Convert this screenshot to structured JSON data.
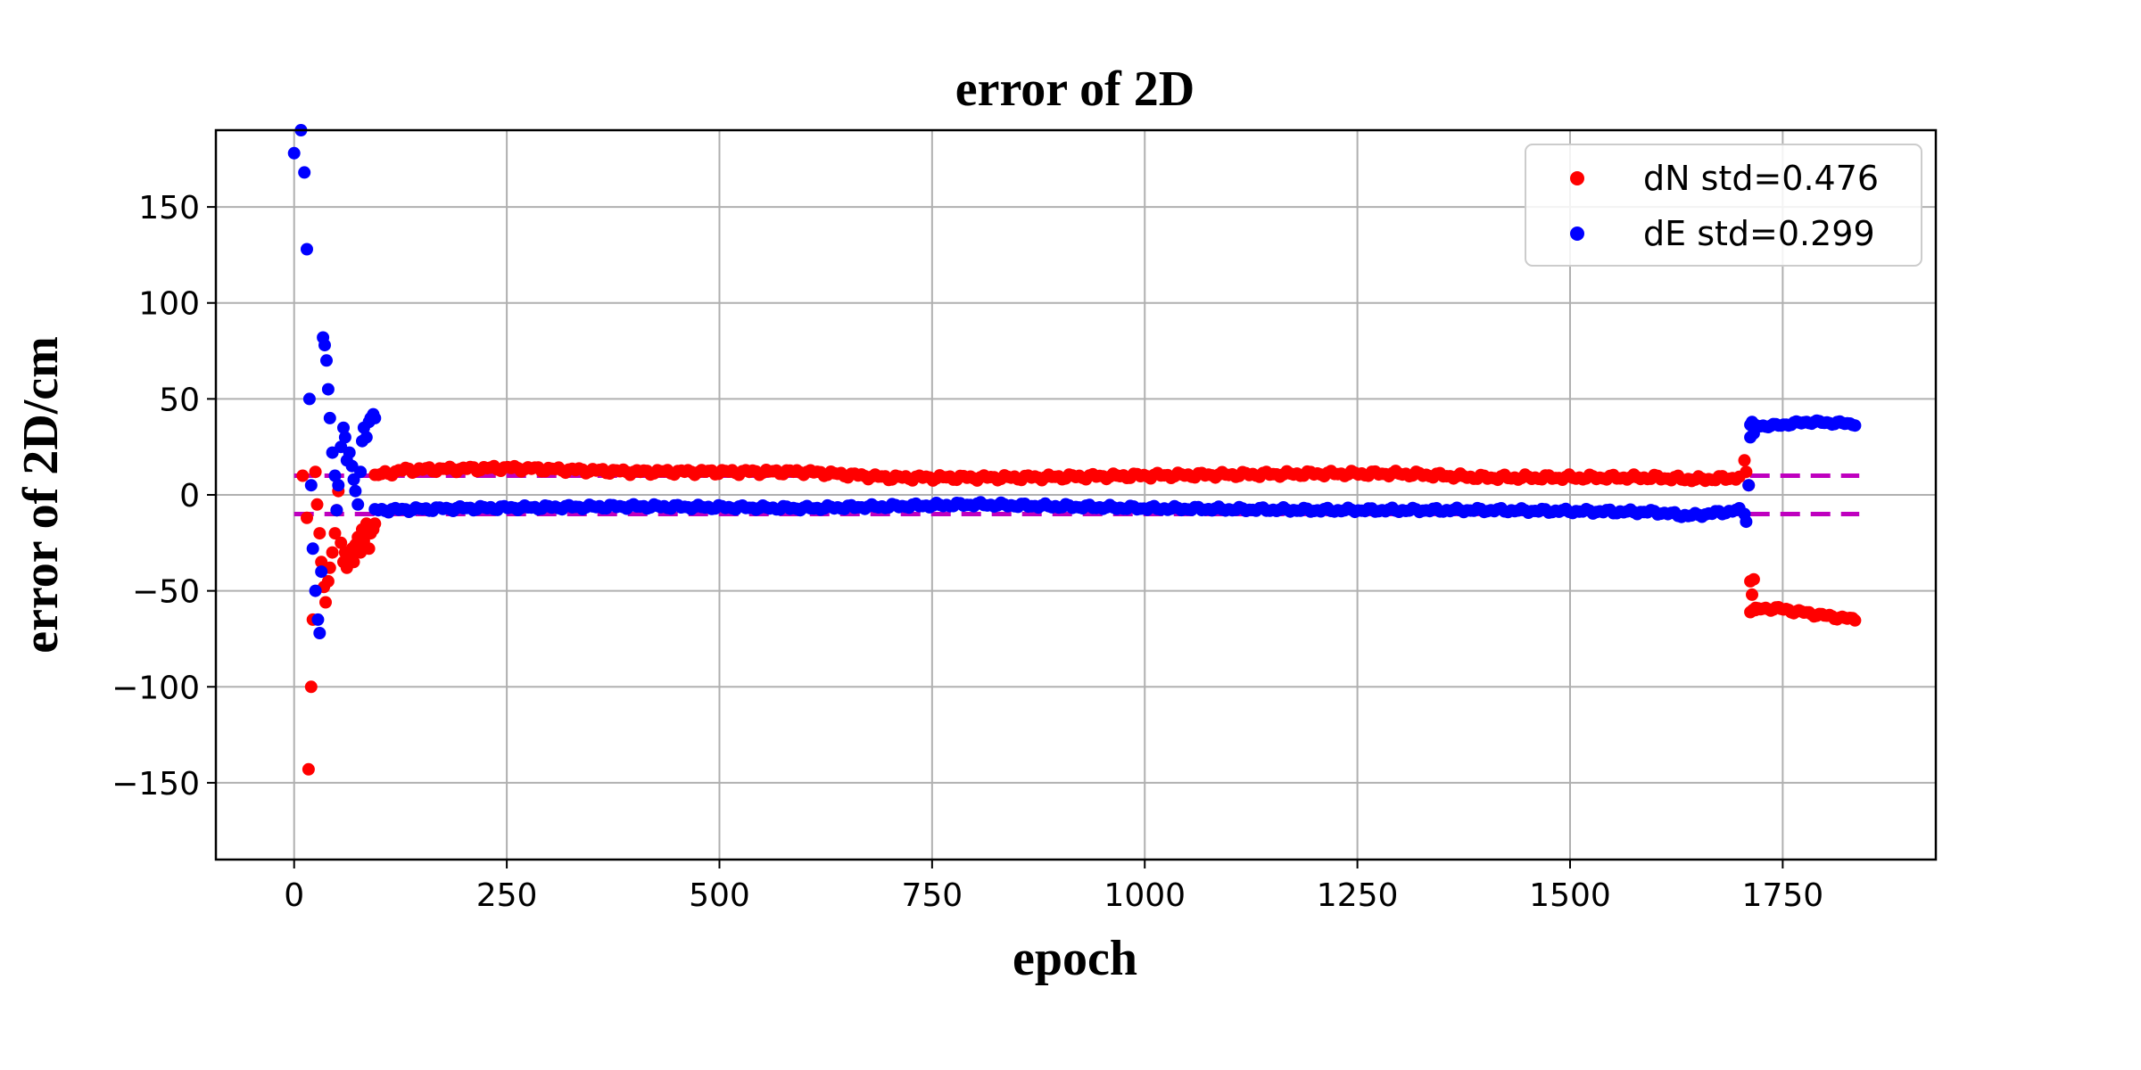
{
  "chart_data": {
    "type": "scatter",
    "title": "error of 2D",
    "xlabel": "epoch",
    "ylabel": "error of 2D/cm",
    "xlim": [
      -92,
      1930
    ],
    "ylim": [
      -190,
      190
    ],
    "x_ticks": [
      0,
      250,
      500,
      750,
      1000,
      1250,
      1500,
      1750
    ],
    "y_ticks": [
      150,
      100,
      50,
      0,
      -50,
      -100,
      -150
    ],
    "y_tick_labels": [
      "150",
      "100",
      "50",
      "0",
      "−50",
      "−100",
      "−150"
    ],
    "grid": true,
    "legend_position": "top-right",
    "colors": {
      "dN": "#ff0000",
      "dE": "#0000ff",
      "threshold": "#bf00bf"
    },
    "series": [
      {
        "name": "dN std=0.476",
        "color": "#ff0000",
        "segments": [
          {
            "x": [
              10,
              15,
              17,
              20,
              22,
              25,
              27,
              30,
              32,
              35,
              37,
              40,
              42,
              45,
              48,
              50,
              52,
              55,
              58,
              60,
              62,
              65,
              68,
              70,
              72,
              75,
              78,
              80,
              82,
              85,
              88,
              90,
              93,
              95
            ],
            "y": [
              10,
              -12,
              -143,
              -100,
              -65,
              12,
              -5,
              -20,
              -35,
              -48,
              -56,
              -45,
              -38,
              -30,
              -20,
              -8,
              2,
              -25,
              -35,
              -30,
              -38,
              -32,
              -28,
              -35,
              -26,
              -22,
              -30,
              -18,
              -24,
              -15,
              -28,
              -20,
              -18,
              -15
            ]
          }
        ],
        "bands": [
          {
            "x0": 95,
            "x1": 1700,
            "step": 4,
            "points": [
              [
                95,
                10
              ],
              [
                130,
                13
              ],
              [
                250,
                14
              ],
              [
                400,
                12
              ],
              [
                600,
                12
              ],
              [
                700,
                9
              ],
              [
                850,
                9
              ],
              [
                1000,
                10
              ],
              [
                1200,
                11
              ],
              [
                1300,
                11
              ],
              [
                1400,
                9
              ],
              [
                1500,
                9
              ],
              [
                1600,
                9
              ],
              [
                1650,
                8
              ],
              [
                1700,
                9
              ]
            ],
            "jitter": 1.6
          },
          {
            "x0": 1712,
            "x1": 1835,
            "step": 3,
            "points": [
              [
                1712,
                -60
              ],
              [
                1740,
                -59
              ],
              [
                1800,
                -63
              ],
              [
                1835,
                -65
              ]
            ],
            "jitter": 1.2
          }
        ],
        "extra": {
          "x": [
            1705,
            1707,
            1710,
            1712,
            1714,
            1716,
            1718
          ],
          "y": [
            18,
            12,
            5,
            -45,
            -52,
            -44,
            -60
          ]
        }
      },
      {
        "name": "dE std=0.299",
        "color": "#0000ff",
        "segments": [
          {
            "x": [
              0,
              8,
              12,
              15,
              18,
              20,
              22,
              25,
              28,
              30,
              32,
              34,
              36,
              38,
              40,
              42,
              45,
              48,
              50,
              52,
              55,
              58,
              60,
              62,
              65,
              68,
              70,
              72,
              75,
              78,
              80,
              82,
              85,
              88,
              90,
              93,
              95
            ],
            "y": [
              178,
              190,
              168,
              128,
              50,
              5,
              -28,
              -50,
              -65,
              -72,
              -40,
              82,
              78,
              70,
              55,
              40,
              22,
              10,
              -8,
              5,
              25,
              35,
              30,
              18,
              22,
              15,
              8,
              2,
              -5,
              12,
              28,
              35,
              30,
              38,
              40,
              42,
              40
            ]
          }
        ],
        "bands": [
          {
            "x0": 95,
            "x1": 1700,
            "step": 4,
            "points": [
              [
                95,
                -8
              ],
              [
                200,
                -7
              ],
              [
                400,
                -6
              ],
              [
                600,
                -7
              ],
              [
                800,
                -5
              ],
              [
                1000,
                -7
              ],
              [
                1200,
                -8
              ],
              [
                1400,
                -8
              ],
              [
                1600,
                -9
              ],
              [
                1640,
                -11
              ],
              [
                1700,
                -8
              ]
            ],
            "jitter": 1.3
          },
          {
            "x0": 1712,
            "x1": 1835,
            "step": 3,
            "points": [
              [
                1712,
                36
              ],
              [
                1740,
                36
              ],
              [
                1780,
                38
              ],
              [
                1835,
                37
              ]
            ],
            "jitter": 1.0
          }
        ],
        "extra": {
          "x": [
            1705,
            1707,
            1710,
            1712,
            1714,
            1716
          ],
          "y": [
            -10,
            -14,
            5,
            30,
            38,
            32
          ]
        }
      }
    ],
    "threshold_lines": [
      {
        "y": 10,
        "x": [
          0,
          1840
        ],
        "style": "dashed"
      },
      {
        "y": -10,
        "x": [
          0,
          1840
        ],
        "style": "dashed"
      }
    ]
  }
}
